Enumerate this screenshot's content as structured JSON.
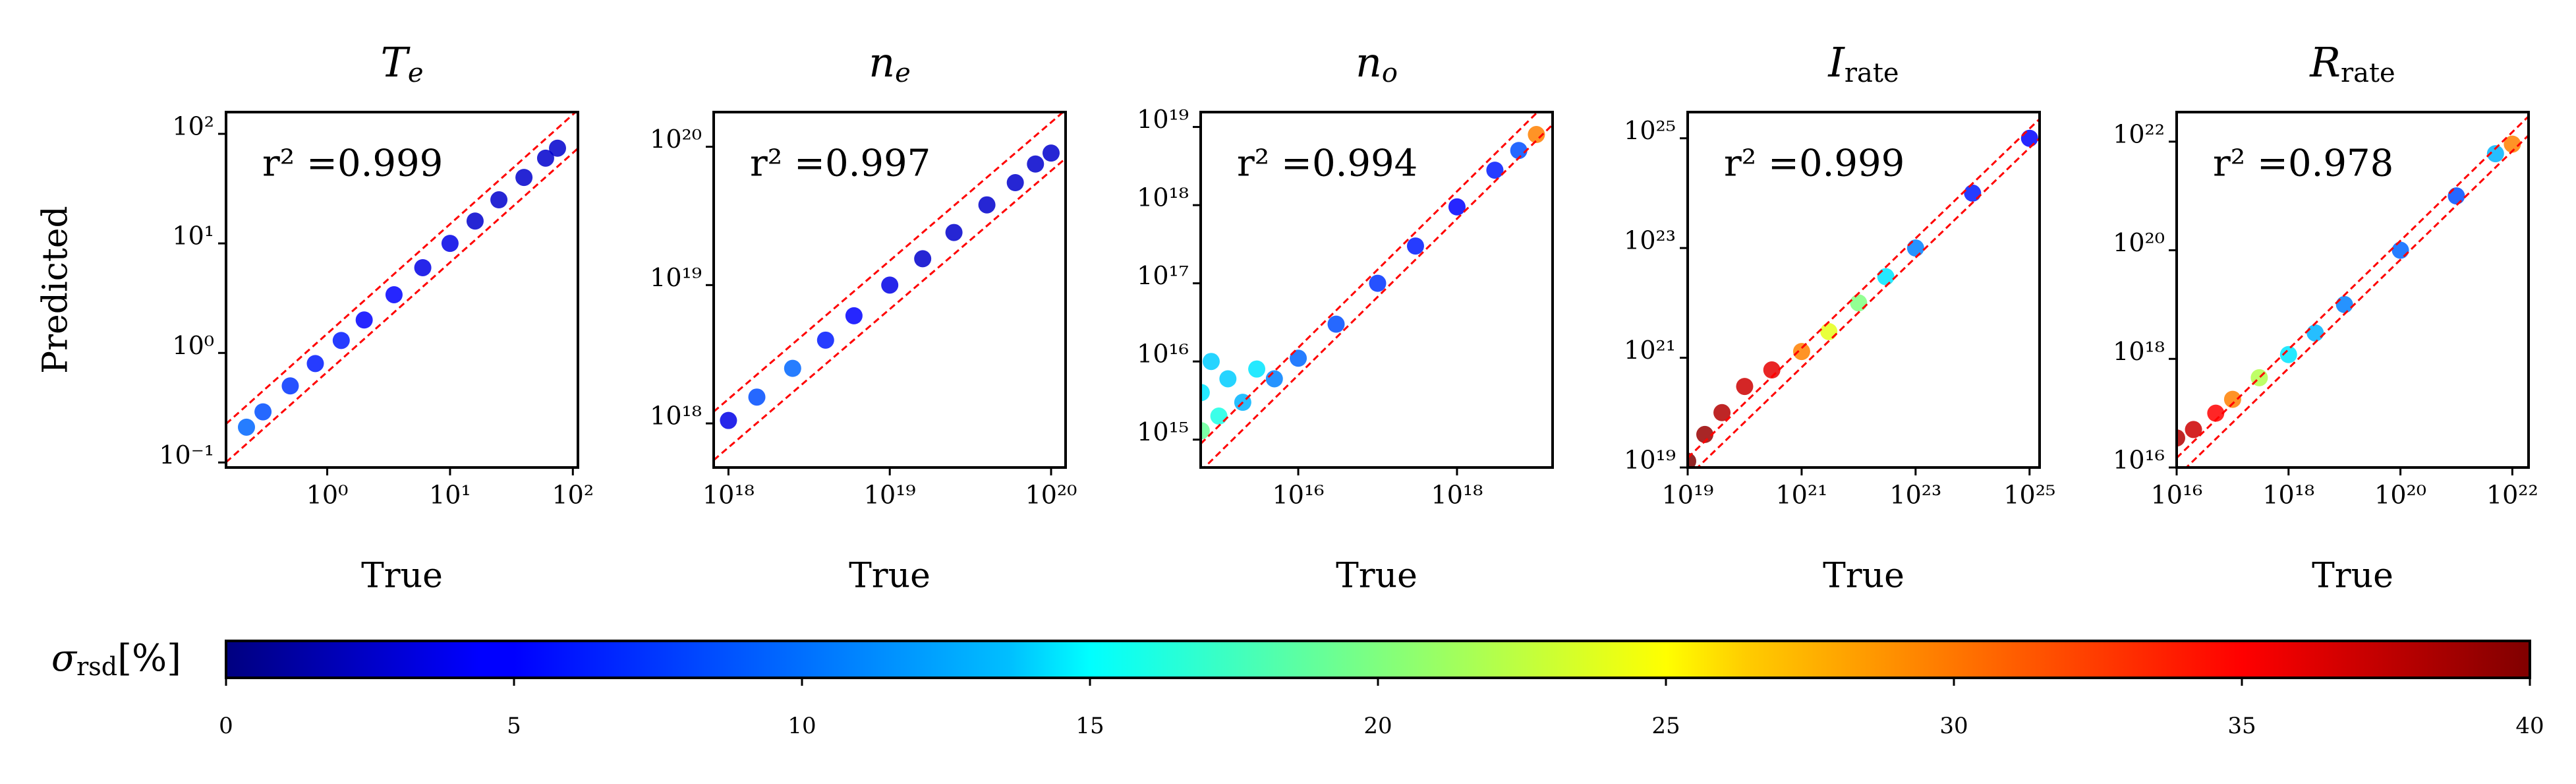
{
  "chart_data": [
    {
      "type": "scatter",
      "title": {
        "main": "T",
        "sub": "e"
      },
      "annotation": "r² =0.999",
      "xlabel": "True",
      "ylabel": "Predicted",
      "xscale": "log",
      "yscale": "log",
      "xlim": [
        0.15,
        110
      ],
      "ylim": [
        0.09,
        158
      ],
      "xticks": [
        {
          "value": 1,
          "label": "10⁰"
        },
        {
          "value": 10,
          "label": "10¹"
        },
        {
          "value": 100,
          "label": "10²"
        }
      ],
      "yticks": [
        {
          "value": 0.1,
          "label": "10⁻¹"
        },
        {
          "value": 1,
          "label": "10⁰"
        },
        {
          "value": 10,
          "label": "10¹"
        },
        {
          "value": 100,
          "label": "10²"
        }
      ],
      "x": [
        0.22,
        0.3,
        0.5,
        0.8,
        1.3,
        2,
        3.5,
        6,
        10,
        16,
        25,
        40,
        60,
        75
      ],
      "y": [
        0.21,
        0.29,
        0.5,
        0.8,
        1.3,
        2,
        3.4,
        6,
        10,
        16,
        25,
        40,
        60,
        74
      ],
      "sigma": [
        9,
        8,
        7,
        6,
        6,
        5,
        5,
        4,
        4,
        3,
        3,
        3,
        3,
        3
      ],
      "reference_lines": [
        {
          "factor": 1.5,
          "color": "#ff0000"
        },
        {
          "factor": 0.67,
          "color": "#ff0000"
        }
      ]
    },
    {
      "type": "scatter",
      "title": {
        "main": "n",
        "sub": "e"
      },
      "annotation": "r² =0.997",
      "xlabel": "True",
      "xscale": "log",
      "yscale": "log",
      "xlim": [
        8.1e+17,
        1.23e+20
      ],
      "ylim": [
        4.8e+17,
        1.78e+20
      ],
      "xticks": [
        {
          "value": 1e+18,
          "label": "10¹⁸"
        },
        {
          "value": 1e+19,
          "label": "10¹⁹"
        },
        {
          "value": 1e+20,
          "label": "10²⁰"
        }
      ],
      "yticks": [
        {
          "value": 1e+18,
          "label": "10¹⁸"
        },
        {
          "value": 1e+19,
          "label": "10¹⁹"
        },
        {
          "value": 1e+20,
          "label": "10²⁰"
        }
      ],
      "x": [
        1e+18,
        1.5e+18,
        2.5e+18,
        4e+18,
        6e+18,
        1e+19,
        1.6e+19,
        2.5e+19,
        4e+19,
        6e+19,
        8e+19,
        1e+20
      ],
      "y": [
        1.05e+18,
        1.55e+18,
        2.5e+18,
        4e+18,
        6e+18,
        1e+19,
        1.55e+19,
        2.4e+19,
        3.8e+19,
        5.5e+19,
        7.5e+19,
        9e+19
      ],
      "sigma": [
        4,
        8,
        9,
        6,
        5,
        4,
        3,
        3,
        3,
        3,
        3,
        3
      ],
      "reference_lines": [
        {
          "factor": 1.5,
          "color": "#ff0000"
        },
        {
          "factor": 0.67,
          "color": "#ff0000"
        }
      ]
    },
    {
      "type": "scatter",
      "title": {
        "main": "n",
        "sub": "o"
      },
      "annotation": "r² =0.994",
      "xlabel": "True",
      "xscale": "log",
      "yscale": "log",
      "xlim": [
        590000000000000.0,
        1.6e+19
      ],
      "ylim": [
        440000000000000.0,
        1.55e+19
      ],
      "xticks": [
        {
          "value": 1e+16,
          "label": "10¹⁶"
        },
        {
          "value": 1e+18,
          "label": "10¹⁸"
        }
      ],
      "yticks": [
        {
          "value": 1000000000000000.0,
          "label": "10¹⁵"
        },
        {
          "value": 1e+16,
          "label": "10¹⁶"
        },
        {
          "value": 1e+17,
          "label": "10¹⁷"
        },
        {
          "value": 1e+18,
          "label": "10¹⁸"
        },
        {
          "value": 1e+19,
          "label": "10¹⁹"
        }
      ],
      "x": [
        600000000000000.0,
        600000000000000.0,
        800000000000000.0,
        1000000000000000.0,
        1300000000000000.0,
        2000000000000000.0,
        3000000000000000.0,
        5000000000000000.0,
        1e+16,
        3e+16,
        1e+17,
        3e+17,
        1e+18,
        3e+18,
        6e+18,
        1e+19
      ],
      "y": [
        1300000000000000.0,
        4000000000000000.0,
        1e+16,
        2000000000000000.0,
        6000000000000000.0,
        3000000000000000.0,
        8000000000000000.0,
        6000000000000000.0,
        1.1e+16,
        3e+16,
        1e+17,
        3e+17,
        9.5e+17,
        2.8e+18,
        5e+18,
        8e+18
      ],
      "sigma": [
        19,
        14,
        13,
        16,
        13,
        12,
        14,
        10,
        9,
        8,
        7,
        6,
        5,
        6,
        8,
        30
      ],
      "reference_lines": [
        {
          "factor": 1.5,
          "color": "#ff0000"
        },
        {
          "factor": 0.67,
          "color": "#ff0000"
        }
      ]
    },
    {
      "type": "scatter",
      "title": {
        "main": "I",
        "sub": "rate"
      },
      "annotation": "r² =0.999",
      "xlabel": "True",
      "xscale": "log",
      "yscale": "log",
      "xlim": [
        1e+19,
        1.5e+25
      ],
      "ylim": [
        1e+19,
        3e+25
      ],
      "xticks": [
        {
          "value": 1e+19,
          "label": "10¹⁹"
        },
        {
          "value": 1e+21,
          "label": "10²¹"
        },
        {
          "value": 1e+23,
          "label": "10²³"
        },
        {
          "value": 1e+25,
          "label": "10²⁵"
        }
      ],
      "yticks": [
        {
          "value": 1e+19,
          "label": "10¹⁹"
        },
        {
          "value": 1e+21,
          "label": "10²¹"
        },
        {
          "value": 1e+23,
          "label": "10²³"
        },
        {
          "value": 1e+25,
          "label": "10²⁵"
        }
      ],
      "x": [
        1e+19,
        2e+19,
        4e+19,
        1e+20,
        3e+20,
        1e+21,
        3e+21,
        1e+22,
        3e+22,
        1e+23,
        1e+24,
        1e+25
      ],
      "y": [
        1.3e+19,
        4e+19,
        1e+20,
        3e+20,
        6e+20,
        1.3e+21,
        3e+21,
        1e+22,
        3e+22,
        1e+23,
        1e+24,
        1e+25
      ],
      "sigma": [
        40,
        39,
        38,
        37,
        36,
        30,
        24,
        20,
        14,
        10,
        6,
        5
      ],
      "reference_lines": [
        {
          "factor": 1.5,
          "color": "#ff0000"
        },
        {
          "factor": 0.67,
          "color": "#ff0000"
        }
      ]
    },
    {
      "type": "scatter",
      "title": {
        "main": "R",
        "sub": "rate"
      },
      "annotation": "r² =0.978",
      "xlabel": "True",
      "xscale": "log",
      "yscale": "log",
      "xlim": [
        1e+16,
        1.95e+22
      ],
      "ylim": [
        1e+16,
        3.5e+22
      ],
      "xticks": [
        {
          "value": 1e+16,
          "label": "10¹⁶"
        },
        {
          "value": 1e+18,
          "label": "10¹⁸"
        },
        {
          "value": 1e+20,
          "label": "10²⁰"
        },
        {
          "value": 1e+22,
          "label": "10²²"
        }
      ],
      "yticks": [
        {
          "value": 1e+16,
          "label": "10¹⁶"
        },
        {
          "value": 1e+18,
          "label": "10¹⁸"
        },
        {
          "value": 1e+20,
          "label": "10²⁰"
        },
        {
          "value": 1e+22,
          "label": "10²²"
        }
      ],
      "x": [
        1e+16,
        2e+16,
        5e+16,
        1e+17,
        3e+17,
        1e+18,
        3e+18,
        1e+19,
        1e+20,
        1e+21,
        5e+21,
        1e+22
      ],
      "y": [
        3.5e+16,
        5e+16,
        1e+17,
        1.8e+17,
        4.5e+17,
        1.2e+18,
        3e+18,
        1e+19,
        1e+20,
        1e+21,
        6e+21,
        9e+21
      ],
      "sigma": [
        38,
        37,
        35,
        30,
        22,
        14,
        12,
        10,
        9,
        8,
        12,
        30
      ],
      "reference_lines": [
        {
          "factor": 1.5,
          "color": "#ff0000"
        },
        {
          "factor": 0.67,
          "color": "#ff0000"
        }
      ]
    }
  ],
  "colorbar": {
    "label": {
      "symbol": "σ",
      "sub": "rsd",
      "unit": "[%]"
    },
    "colormap": "jet",
    "lim": [
      0,
      40
    ],
    "ticks": [
      0,
      5,
      10,
      15,
      20,
      25,
      30,
      35,
      40
    ]
  }
}
